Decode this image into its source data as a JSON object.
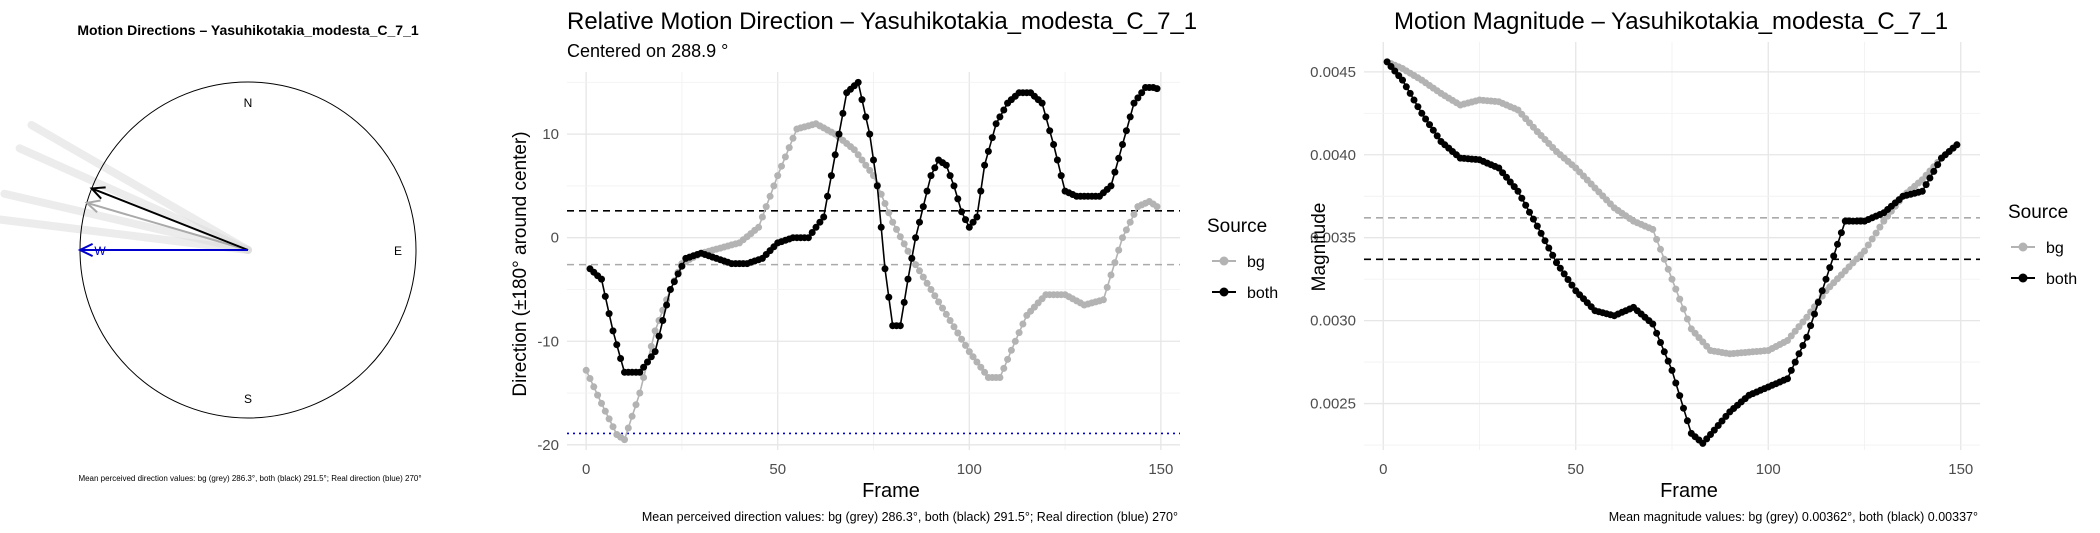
{
  "chart_data": [
    {
      "type": "compass",
      "title": "Motion Directions – Yasuhikotakia_modesta_C_7_1",
      "cardinals": [
        "N",
        "E",
        "S",
        "W"
      ],
      "arrows": [
        {
          "name": "bg",
          "angle_deg": 286.3,
          "color": "#aaaaaa"
        },
        {
          "name": "both",
          "angle_deg": 291.5,
          "color": "#000000"
        },
        {
          "name": "real",
          "angle_deg": 270,
          "color": "#0000cc"
        }
      ],
      "fan_angles_deg": [
        300,
        294,
        283,
        277
      ],
      "caption": "Mean perceived direction values: bg (grey) 286.3°, both (black) 291.5°; Real direction (blue) 270°"
    },
    {
      "type": "line",
      "title": "Relative Motion Direction – Yasuhikotakia_modesta_C_7_1",
      "subtitle": "Centered on  288.9 °",
      "xlabel": "Frame",
      "ylabel": "Direction (±180° around center)",
      "xlim": [
        -5,
        155
      ],
      "ylim": [
        -20.5,
        16
      ],
      "xticks": [
        0,
        50,
        100,
        150
      ],
      "yticks": [
        -20,
        -10,
        0,
        10
      ],
      "legend": {
        "title": "Source",
        "entries": [
          "bg",
          "both"
        ],
        "placement": "right"
      },
      "hlines": [
        {
          "y": 2.6,
          "color": "#000000",
          "style": "dashed"
        },
        {
          "y": -2.6,
          "color": "#aaaaaa",
          "style": "dashed"
        },
        {
          "y": -18.9,
          "color": "#0000cc",
          "style": "dotted"
        }
      ],
      "series": [
        {
          "name": "bg",
          "color": "#b3b3b3",
          "x": [
            0,
            4,
            8,
            10,
            14,
            18,
            22,
            25,
            30,
            35,
            40,
            45,
            50,
            55,
            60,
            65,
            70,
            75,
            80,
            85,
            90,
            95,
            100,
            105,
            108,
            112,
            115,
            120,
            125,
            130,
            135,
            140,
            144,
            147,
            149
          ],
          "y": [
            -12.8,
            -16,
            -19,
            -19.5,
            -15,
            -9,
            -5,
            -2.5,
            -1.5,
            -1,
            -0.5,
            1,
            6,
            10.5,
            11,
            10,
            8.5,
            6,
            1.5,
            -2,
            -5,
            -8,
            -11,
            -13.5,
            -13.5,
            -10,
            -7.5,
            -5.5,
            -5.5,
            -6.5,
            -6,
            0,
            3,
            3.5,
            3
          ]
        },
        {
          "name": "both",
          "color": "#000000",
          "x": [
            1,
            4,
            7,
            10,
            14,
            18,
            22,
            26,
            30,
            34,
            38,
            42,
            46,
            50,
            54,
            58,
            62,
            65,
            68,
            71,
            74,
            76,
            78,
            80,
            82,
            84,
            86,
            88,
            90,
            92,
            94,
            96,
            98,
            100,
            102,
            104,
            107,
            110,
            113,
            116,
            119,
            122,
            125,
            128,
            131,
            134,
            137,
            140,
            143,
            146,
            148,
            149
          ],
          "y": [
            -3,
            -4,
            -9,
            -13,
            -13,
            -11,
            -5,
            -2,
            -1.5,
            -2,
            -2.5,
            -2.5,
            -2,
            -0.5,
            0,
            0,
            2,
            8,
            14,
            15,
            10,
            5,
            -3,
            -8.5,
            -8.5,
            -4,
            0,
            3,
            6,
            7.5,
            7,
            5,
            2.5,
            1,
            2,
            7,
            11,
            13,
            14,
            14,
            13,
            9,
            4.5,
            4,
            4,
            4,
            5,
            9,
            13,
            14.5,
            14.5,
            14.4
          ]
        }
      ],
      "caption": "Mean perceived direction values: bg (grey) 286.3°, both (black) 291.5°; Real direction (blue) 270°"
    },
    {
      "type": "line",
      "title": "Motion Magnitude – Yasuhikotakia_modesta_C_7_1",
      "xlabel": "Frame",
      "ylabel": "Magnitude",
      "xlim": [
        -5,
        155
      ],
      "ylim": [
        0.00222,
        0.00468
      ],
      "xticks": [
        0,
        50,
        100,
        150
      ],
      "yticks": [
        0.0025,
        0.003,
        0.0035,
        0.004,
        0.0045
      ],
      "ytick_labels": [
        "0.0025",
        "0.0030",
        "0.0035",
        "0.0040",
        "0.0045"
      ],
      "legend": {
        "title": "Source",
        "entries": [
          "bg",
          "both"
        ],
        "placement": "right"
      },
      "hlines": [
        {
          "y": 0.00362,
          "color": "#aaaaaa",
          "style": "dashed"
        },
        {
          "y": 0.00337,
          "color": "#000000",
          "style": "dashed"
        }
      ],
      "series": [
        {
          "name": "bg",
          "color": "#b3b3b3",
          "x": [
            1,
            5,
            10,
            15,
            20,
            25,
            30,
            35,
            40,
            45,
            50,
            55,
            60,
            65,
            70,
            75,
            80,
            85,
            90,
            95,
            100,
            105,
            110,
            115,
            120,
            125,
            130,
            135,
            140,
            145,
            149
          ],
          "y": [
            0.00456,
            0.00452,
            0.00445,
            0.00437,
            0.0043,
            0.00433,
            0.00432,
            0.00427,
            0.00414,
            0.00402,
            0.00392,
            0.0038,
            0.00368,
            0.0036,
            0.00355,
            0.00325,
            0.00295,
            0.00282,
            0.0028,
            0.00281,
            0.00282,
            0.00288,
            0.00302,
            0.00318,
            0.0033,
            0.00342,
            0.0036,
            0.00375,
            0.00385,
            0.00398,
            0.00406
          ]
        },
        {
          "name": "both",
          "color": "#000000",
          "x": [
            1,
            5,
            10,
            15,
            20,
            25,
            30,
            35,
            40,
            45,
            50,
            55,
            60,
            65,
            70,
            75,
            80,
            83,
            86,
            90,
            95,
            100,
            105,
            110,
            115,
            120,
            125,
            130,
            135,
            140,
            145,
            149
          ],
          "y": [
            0.00456,
            0.00445,
            0.00425,
            0.00408,
            0.00398,
            0.00397,
            0.00392,
            0.00378,
            0.00357,
            0.00335,
            0.00318,
            0.00306,
            0.00303,
            0.00308,
            0.00298,
            0.0027,
            0.00232,
            0.00226,
            0.00234,
            0.00245,
            0.00255,
            0.0026,
            0.00265,
            0.0029,
            0.00325,
            0.0036,
            0.0036,
            0.00365,
            0.00375,
            0.00378,
            0.00398,
            0.00406
          ]
        }
      ],
      "caption": "Mean magnitude values: bg (grey) 0.00362°, both (black) 0.00337°"
    }
  ]
}
